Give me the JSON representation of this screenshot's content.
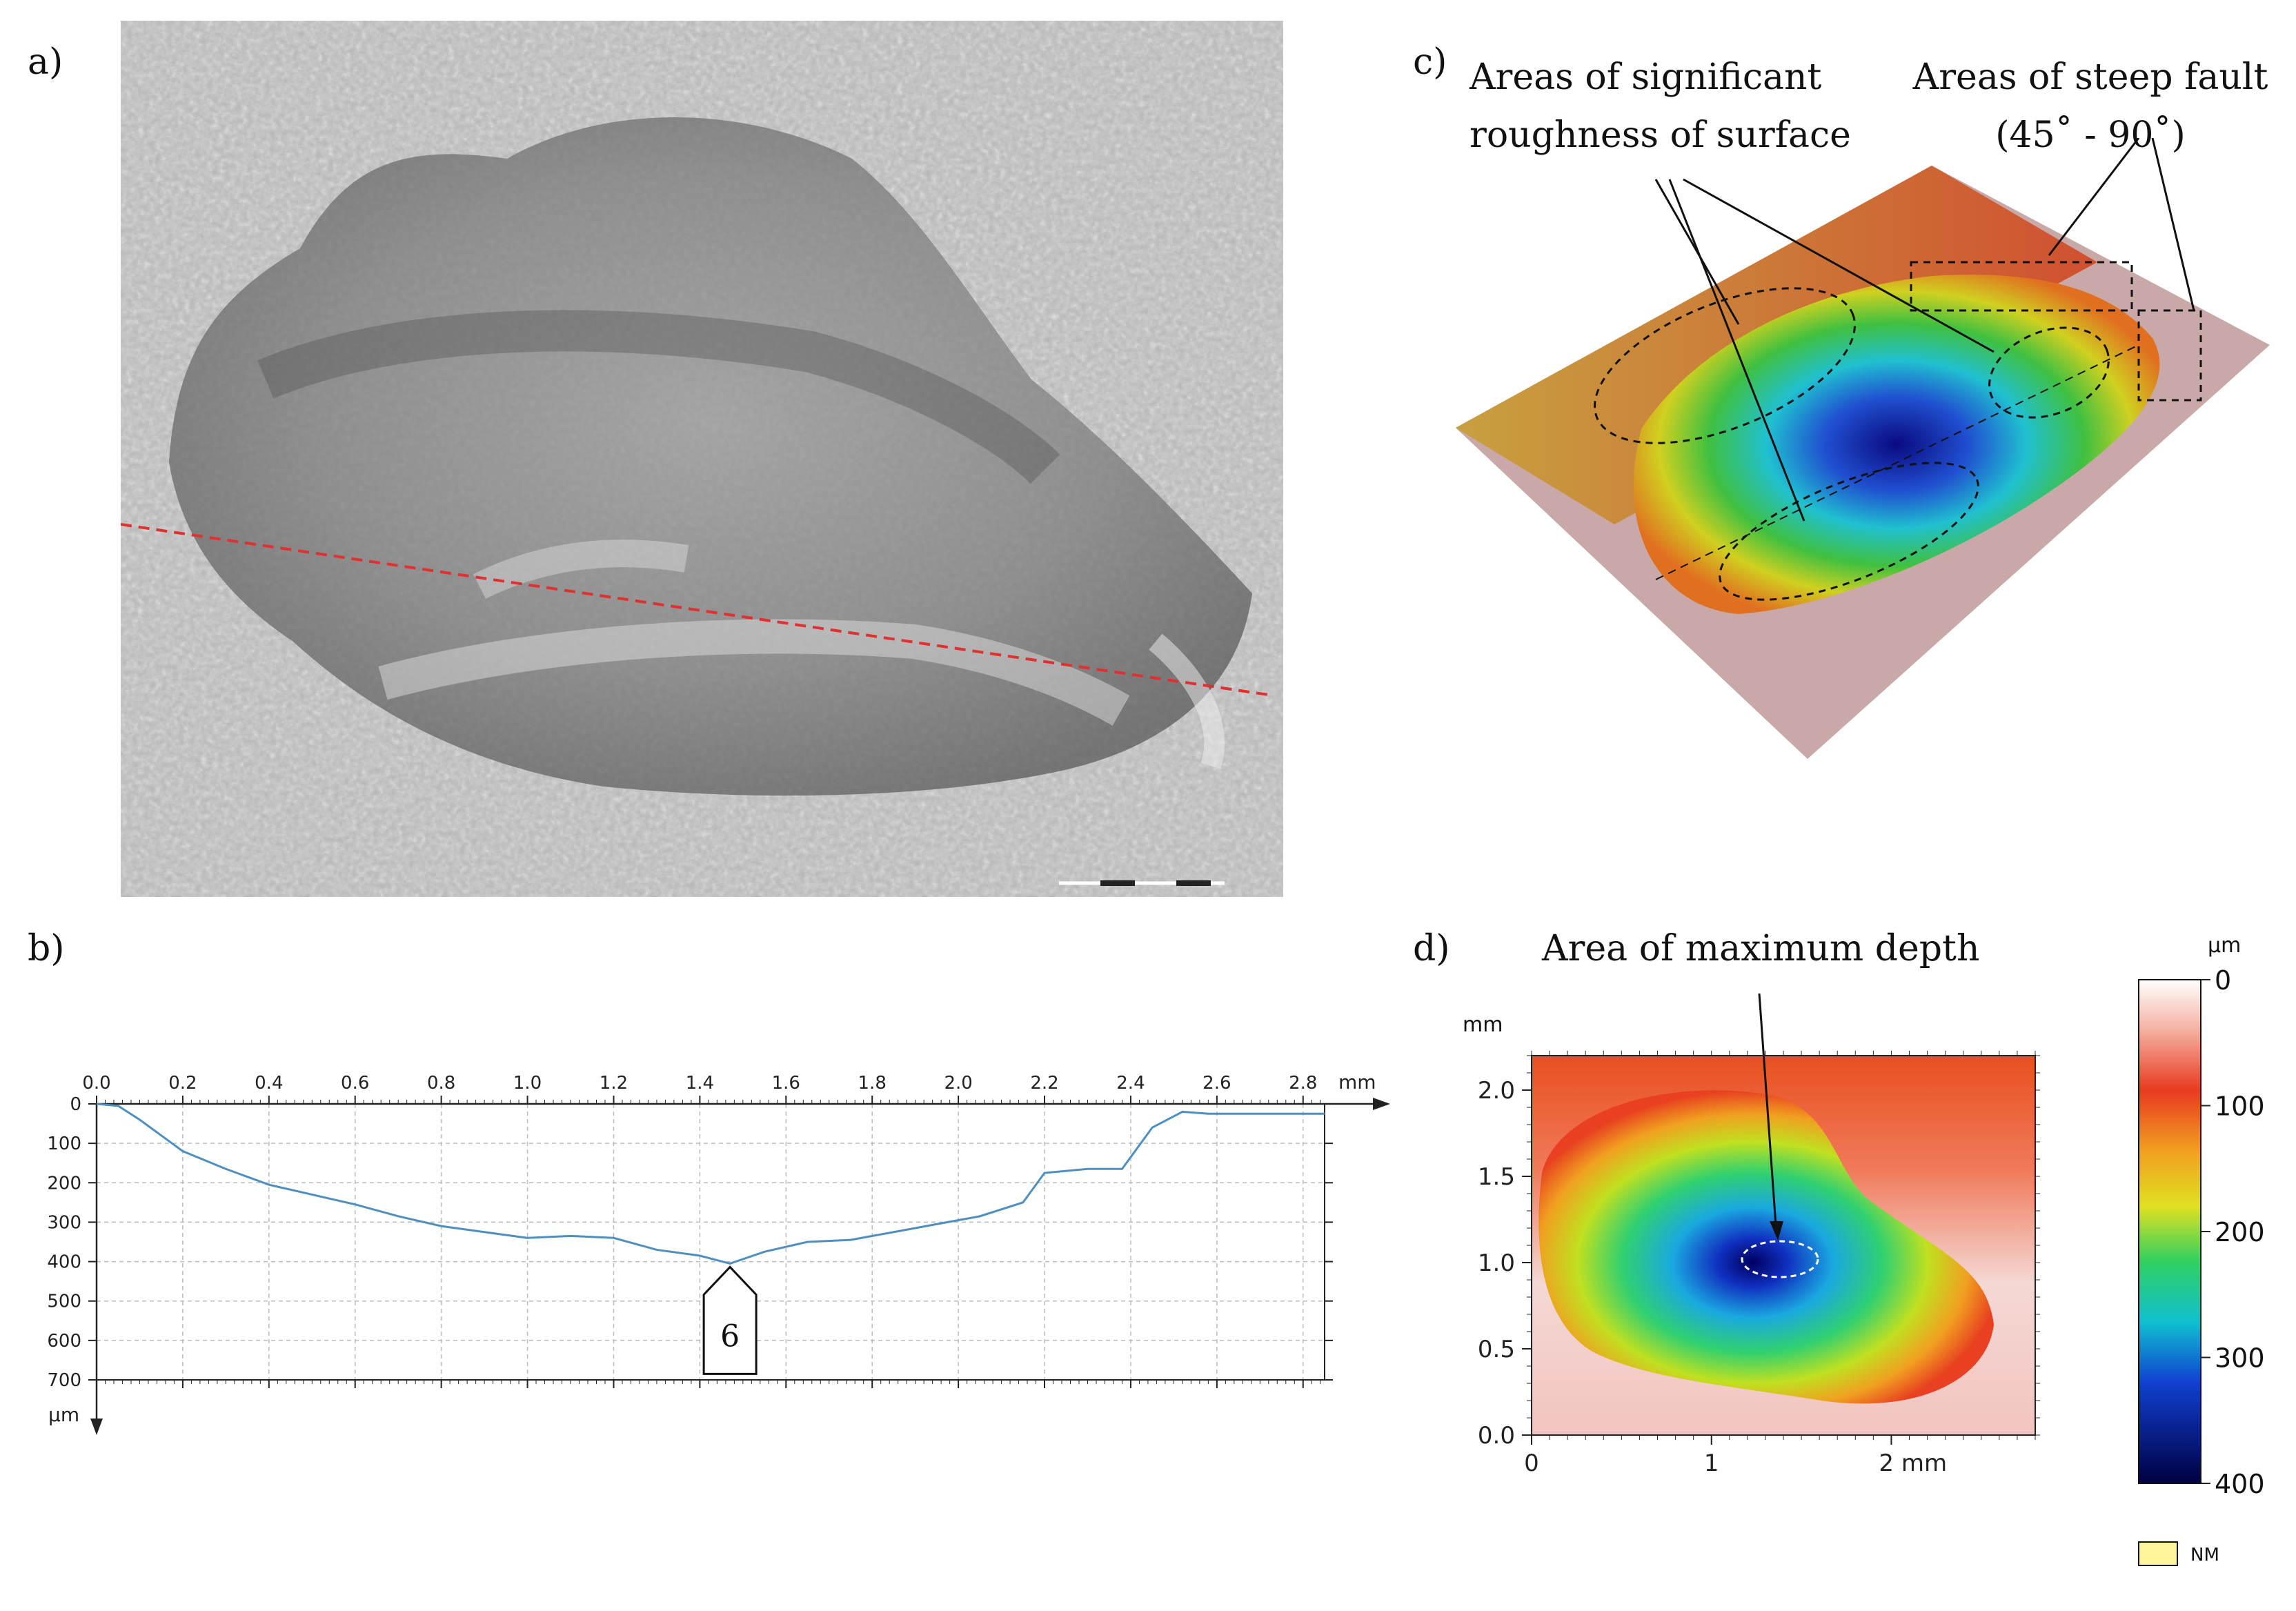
{
  "figure": {
    "panel_a": {
      "label": "a)"
    },
    "panel_b": {
      "label": "b)",
      "marker_label": "6"
    },
    "panel_c": {
      "label": "c)",
      "annotation_roughness_line1": "Areas of significant",
      "annotation_roughness_line2": "roughness of surface",
      "annotation_fault_line1": "Areas of steep fault",
      "annotation_fault_line2": "(45˚ - 90˚)"
    },
    "panel_d": {
      "label": "d)",
      "annotation": "Area of maximum depth",
      "colorbar": {
        "unit": "µm",
        "ticks": [
          "0",
          "100",
          "200",
          "300",
          "400"
        ],
        "nm_label": "NM"
      }
    }
  },
  "chart_data": [
    {
      "type": "line",
      "panel": "b",
      "xlabel": "mm",
      "ylabel": "µm",
      "xlim": [
        0,
        2.85
      ],
      "ylim": [
        0,
        700
      ],
      "y_inverted": true,
      "grid": true,
      "x_ticks": [
        "0.0",
        "0.2",
        "0.4",
        "0.6",
        "0.8",
        "1.0",
        "1.2",
        "1.4",
        "1.6",
        "1.8",
        "2.0",
        "2.2",
        "2.4",
        "2.6",
        "2.8"
      ],
      "y_ticks": [
        "0",
        "100",
        "200",
        "300",
        "400",
        "500",
        "600",
        "700"
      ],
      "series": [
        {
          "color": "#4f8fc0",
          "x": [
            0.0,
            0.05,
            0.1,
            0.2,
            0.3,
            0.4,
            0.5,
            0.6,
            0.7,
            0.8,
            0.9,
            1.0,
            1.1,
            1.2,
            1.3,
            1.4,
            1.47,
            1.55,
            1.65,
            1.75,
            1.85,
            1.95,
            2.05,
            2.15,
            2.2,
            2.3,
            2.38,
            2.45,
            2.52,
            2.58,
            2.65,
            2.75,
            2.85
          ],
          "y": [
            0,
            5,
            40,
            120,
            165,
            205,
            230,
            255,
            285,
            310,
            325,
            340,
            335,
            340,
            370,
            385,
            405,
            375,
            350,
            345,
            325,
            305,
            285,
            250,
            175,
            165,
            165,
            60,
            20,
            25,
            25,
            25,
            25
          ]
        }
      ]
    },
    {
      "type": "heatmap",
      "panel": "d",
      "xlabel": "mm",
      "ylabel": "mm",
      "xlim": [
        0,
        2.8
      ],
      "ylim": [
        0,
        2.2
      ],
      "x_ticks": [
        "0",
        "1",
        "2 mm"
      ],
      "y_ticks": [
        "0.0",
        "0.5",
        "1.0",
        "1.5",
        "2.0"
      ],
      "y_unit_label": "mm",
      "colorscale_um": [
        0,
        400
      ]
    }
  ]
}
